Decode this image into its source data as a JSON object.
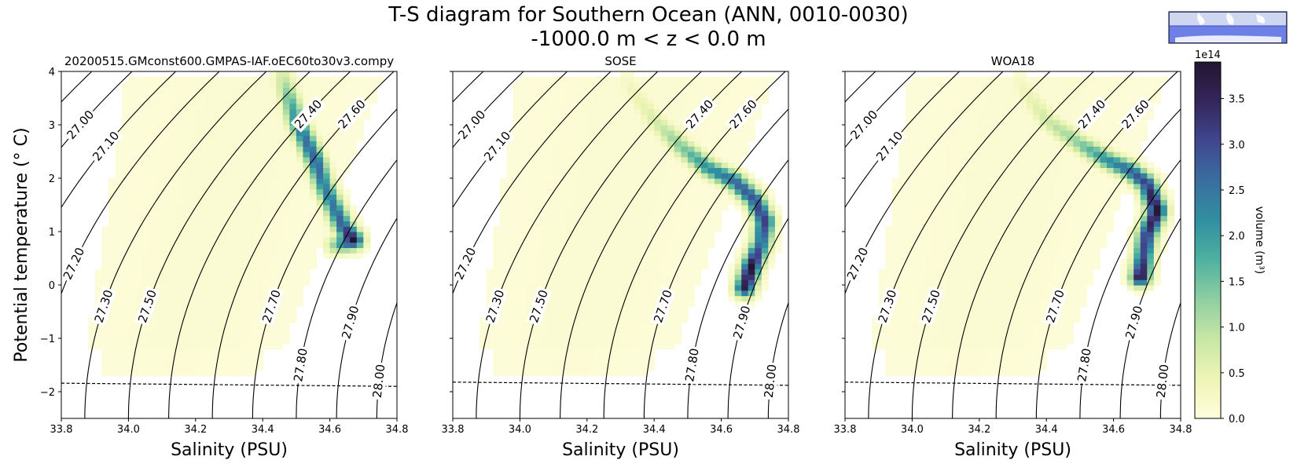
{
  "figure": {
    "title_line1": "T-S diagram for Southern Ocean (ANN, 0010-0030)",
    "title_line2": "-1000.0 m < z < 0.0 m",
    "inset_map": "Southern Ocean region map (inset)"
  },
  "colorbar": {
    "label": "volume (m³)",
    "exponent": "1e14",
    "ticks": [
      "0.0",
      "0.5",
      "1.0",
      "1.5",
      "2.0",
      "2.5",
      "3.0",
      "3.5"
    ],
    "range": [
      0,
      3.9
    ],
    "colormap": [
      "#fffddd",
      "#eef5b5",
      "#c8e7a6",
      "#8fcfa1",
      "#4fb1a0",
      "#318fa1",
      "#3a6ea0",
      "#40478f",
      "#34265a",
      "#231531"
    ]
  },
  "chart_data": [
    {
      "type": "heatmap",
      "title": "20200515.GMconst600.GMPAS-IAF.oEC60to30v3.compy",
      "xlabel": "Salinity (PSU)",
      "ylabel": "Potential temperature ($^\\circ$C)",
      "xlim": [
        33.8,
        34.8
      ],
      "ylim": [
        -2.5,
        4
      ],
      "xticks": [
        "33.8",
        "34.0",
        "34.2",
        "34.4",
        "34.6",
        "34.8"
      ],
      "yticks": [
        "−2",
        "−1",
        "0",
        "1",
        "2",
        "3",
        "4"
      ],
      "freezing_line": {
        "style": "dashed",
        "points": [
          [
            33.8,
            -1.84
          ],
          [
            34.8,
            -1.9
          ]
        ]
      },
      "density_contours": [
        "27.00",
        "27.10",
        "27.20",
        "27.30",
        "27.50",
        "27.60",
        "27.70",
        "27.80",
        "27.90",
        "28.00",
        "27.40"
      ],
      "volume_ridge_1e14": [
        {
          "s": 34.46,
          "t": 3.9,
          "v": 0.8
        },
        {
          "s": 34.48,
          "t": 3.5,
          "v": 1.6
        },
        {
          "s": 34.5,
          "t": 3.1,
          "v": 2.2
        },
        {
          "s": 34.53,
          "t": 2.7,
          "v": 2.6
        },
        {
          "s": 34.56,
          "t": 2.3,
          "v": 2.8
        },
        {
          "s": 34.58,
          "t": 1.9,
          "v": 2.4
        },
        {
          "s": 34.61,
          "t": 1.5,
          "v": 2.5
        },
        {
          "s": 34.64,
          "t": 1.1,
          "v": 2.9
        },
        {
          "s": 34.67,
          "t": 0.85,
          "v": 3.9
        },
        {
          "s": 34.62,
          "t": 0.75,
          "v": 1.4
        }
      ]
    },
    {
      "type": "heatmap",
      "title": "SOSE",
      "xlabel": "Salinity (PSU)",
      "ylabel": "",
      "xlim": [
        33.8,
        34.8
      ],
      "ylim": [
        -2.5,
        4
      ],
      "xticks": [
        "33.8",
        "34.0",
        "34.2",
        "34.4",
        "34.6",
        "34.8"
      ],
      "yticks": [],
      "freezing_line": {
        "style": "dashed",
        "points": [
          [
            33.8,
            -1.82
          ],
          [
            34.8,
            -1.88
          ]
        ]
      },
      "density_contours": [
        "27.00",
        "27.10",
        "27.20",
        "27.30",
        "27.50",
        "27.60",
        "27.70",
        "27.80",
        "27.90",
        "28.00",
        "27.40"
      ],
      "volume_ridge_1e14": [
        {
          "s": 34.32,
          "t": 3.8,
          "v": 0.3
        },
        {
          "s": 34.4,
          "t": 3.1,
          "v": 0.7
        },
        {
          "s": 34.48,
          "t": 2.6,
          "v": 1.4
        },
        {
          "s": 34.56,
          "t": 2.2,
          "v": 2.2
        },
        {
          "s": 34.64,
          "t": 1.95,
          "v": 2.7
        },
        {
          "s": 34.7,
          "t": 1.6,
          "v": 3.0
        },
        {
          "s": 34.73,
          "t": 1.2,
          "v": 3.2
        },
        {
          "s": 34.72,
          "t": 0.8,
          "v": 2.6
        },
        {
          "s": 34.69,
          "t": 0.35,
          "v": 3.9
        },
        {
          "s": 34.67,
          "t": -0.05,
          "v": 3.6
        }
      ]
    },
    {
      "type": "heatmap",
      "title": "WOA18",
      "xlabel": "Salinity (PSU)",
      "ylabel": "",
      "xlim": [
        33.8,
        34.8
      ],
      "ylim": [
        -2.5,
        4
      ],
      "xticks": [
        "33.8",
        "34.0",
        "34.2",
        "34.4",
        "34.6",
        "34.8"
      ],
      "yticks": [],
      "freezing_line": {
        "style": "dashed",
        "points": [
          [
            33.8,
            -1.82
          ],
          [
            34.8,
            -1.88
          ]
        ]
      },
      "density_contours": [
        "27.00",
        "27.10",
        "27.20",
        "27.30",
        "27.50",
        "27.60",
        "27.70",
        "27.80",
        "27.90",
        "28.00",
        "27.40"
      ],
      "volume_ridge_1e14": [
        {
          "s": 34.32,
          "t": 3.8,
          "v": 0.3
        },
        {
          "s": 34.4,
          "t": 3.1,
          "v": 0.8
        },
        {
          "s": 34.5,
          "t": 2.65,
          "v": 1.4
        },
        {
          "s": 34.58,
          "t": 2.35,
          "v": 2.2
        },
        {
          "s": 34.65,
          "t": 2.15,
          "v": 2.7
        },
        {
          "s": 34.7,
          "t": 1.9,
          "v": 3.2
        },
        {
          "s": 34.73,
          "t": 1.4,
          "v": 3.9
        },
        {
          "s": 34.7,
          "t": 0.95,
          "v": 3.3
        },
        {
          "s": 34.69,
          "t": 0.55,
          "v": 3.0
        },
        {
          "s": 34.68,
          "t": 0.15,
          "v": 3.9
        }
      ]
    }
  ]
}
